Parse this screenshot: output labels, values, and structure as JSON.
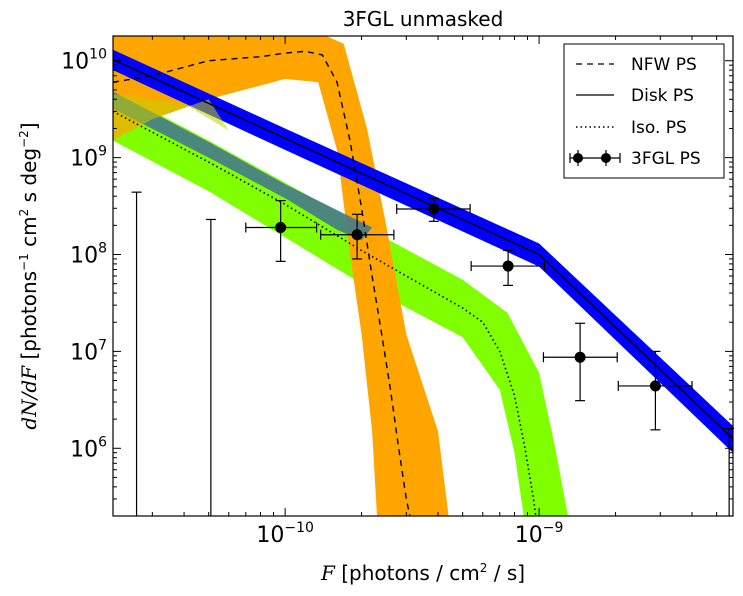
{
  "chart_data": {
    "type": "line",
    "title": "3FGL unmasked",
    "xlabel": "F  [photons / cm²  / s]",
    "ylabel": "dN/dF  [photons⁻¹ cm²  s deg⁻²]",
    "x_scale": "log",
    "y_scale": "log",
    "xlim": [
      2.1e-11,
      5.8e-09
    ],
    "ylim": [
      200000.0,
      18000000000.0
    ],
    "x_ticks": [
      {
        "value": 1e-10,
        "base": "10",
        "exp": "−10"
      },
      {
        "value": 1e-09,
        "base": "10",
        "exp": "−9"
      }
    ],
    "y_ticks": [
      {
        "value": 1000000.0,
        "base": "10",
        "exp": "6"
      },
      {
        "value": 10000000.0,
        "base": "10",
        "exp": "7"
      },
      {
        "value": 100000000.0,
        "base": "10",
        "exp": "8"
      },
      {
        "value": 1000000000.0,
        "base": "10",
        "exp": "9"
      },
      {
        "value": 10000000000.0,
        "base": "10",
        "exp": "10"
      }
    ],
    "legend": {
      "placement": "top-right",
      "entries": [
        {
          "label": "NFW PS",
          "style": "dashed"
        },
        {
          "label": "Disk PS",
          "style": "solid"
        },
        {
          "label": "Iso. PS",
          "style": "dotted"
        },
        {
          "label": "3FGL PS",
          "style": "errorbar"
        }
      ]
    },
    "colors": {
      "nfw_band": "#ffa500",
      "iso_band": "#80ff00",
      "disk_band": "#0000ff",
      "overlap_disk_iso": "#457a8a",
      "overlap_iso_nfw": "#c0d200",
      "line": "#000000"
    },
    "bands": [
      {
        "name": "Iso. PS",
        "color": "#80ff00",
        "lower": [
          [
            2.1e-11,
            1500000000.0
          ],
          [
            5e-11,
            450000000.0
          ],
          [
            1e-10,
            150000000.0
          ],
          [
            2e-10,
            50000000.0
          ],
          [
            5e-10,
            14000000.0
          ],
          [
            7e-10,
            4000000.0
          ],
          [
            8e-10,
            900000.0
          ],
          [
            8.5e-10,
            300000.0
          ],
          [
            8.7e-10,
            200000.0
          ]
        ],
        "upper": [
          [
            2.1e-11,
            5000000000.0
          ],
          [
            5e-11,
            1500000000.0
          ],
          [
            1e-10,
            550000000.0
          ],
          [
            2e-10,
            200000000.0
          ],
          [
            5e-10,
            55000000.0
          ],
          [
            7.5e-10,
            25000000.0
          ],
          [
            1e-09,
            6000000.0
          ],
          [
            1.15e-09,
            1100000.0
          ],
          [
            1.3e-09,
            200000.0
          ]
        ]
      },
      {
        "name": "NFW PS",
        "color": "#ffa500",
        "lower": [
          [
            2.1e-11,
            1500000000.0
          ],
          [
            3e-11,
            2500000000.0
          ],
          [
            5e-11,
            4000000000.0
          ],
          [
            1e-10,
            6500000000.0
          ],
          [
            1.35e-10,
            6000000000.0
          ],
          [
            1.6e-10,
            1200000000.0
          ],
          [
            1.8e-10,
            100000000.0
          ],
          [
            2e-10,
            15000000.0
          ],
          [
            2.2e-10,
            1500000.0
          ],
          [
            2.3e-10,
            200000.0
          ]
        ],
        "upper": [
          [
            2.1e-11,
            18000000000.0
          ],
          [
            5e-11,
            18000000000.0
          ],
          [
            1e-10,
            18000000000.0
          ],
          [
            1.45e-10,
            18000000000.0
          ],
          [
            1.7e-10,
            15000000000.0
          ],
          [
            2.1e-10,
            2000000000.0
          ],
          [
            2.5e-10,
            200000000.0
          ],
          [
            3e-10,
            15000000.0
          ],
          [
            4e-10,
            1500000.0
          ],
          [
            4.4e-10,
            200000.0
          ]
        ]
      },
      {
        "name": "Disk PS",
        "color": "#0000ff",
        "lower": [
          [
            2.1e-11,
            8000000000.0
          ],
          [
            1e-10,
            1200000000.0
          ],
          [
            1e-09,
            75000000.0
          ],
          [
            5.8e-09,
            900000.0
          ]
        ],
        "upper": [
          [
            2.1e-11,
            13000000000.0
          ],
          [
            1e-10,
            2000000000.0
          ],
          [
            1e-09,
            130000000.0
          ],
          [
            5.8e-09,
            1700000.0
          ]
        ]
      }
    ],
    "series": [
      {
        "name": "NFW PS",
        "style": "dashed",
        "points": [
          [
            2.1e-11,
            6000000000.0
          ],
          [
            3e-11,
            7000000000.0
          ],
          [
            5e-11,
            10000000000.0
          ],
          [
            8e-11,
            11000000000.0
          ],
          [
            1e-10,
            12000000000.0
          ],
          [
            1.2e-10,
            12500000000.0
          ],
          [
            1.4e-10,
            11500000000.0
          ],
          [
            1.6e-10,
            6000000000.0
          ],
          [
            1.8e-10,
            1500000000.0
          ],
          [
            2e-10,
            300000000.0
          ],
          [
            2.2e-10,
            60000000.0
          ],
          [
            2.4e-10,
            15000000.0
          ],
          [
            2.6e-10,
            4000000.0
          ],
          [
            2.8e-10,
            1000000.0
          ],
          [
            3e-10,
            300000.0
          ],
          [
            3.1e-10,
            200000.0
          ]
        ]
      },
      {
        "name": "Disk PS",
        "style": "solid",
        "points": [
          [
            2.1e-11,
            10300000000.0
          ],
          [
            1e-10,
            1580000000.0
          ],
          [
            1e-09,
            100000000.0
          ],
          [
            5.8e-09,
            1250000.0
          ]
        ]
      },
      {
        "name": "Iso. PS",
        "style": "dotted",
        "points": [
          [
            2.1e-11,
            3000000000.0
          ],
          [
            5e-11,
            900000000.0
          ],
          [
            1e-10,
            330000000.0
          ],
          [
            2e-10,
            110000000.0
          ],
          [
            3e-10,
            60000000.0
          ],
          [
            5e-10,
            28000000.0
          ],
          [
            6e-10,
            20000000.0
          ],
          [
            7e-10,
            10000000.0
          ],
          [
            8e-10,
            3500000.0
          ],
          [
            8.8e-10,
            1000000.0
          ],
          [
            9.5e-10,
            300000.0
          ],
          [
            9.7e-10,
            200000.0
          ]
        ]
      }
    ],
    "points_3fgl": [
      {
        "x": 9.6e-11,
        "y": 190000000.0,
        "xerr": [
          7e-11,
          1.33e-10
        ],
        "yerr": [
          85000000.0,
          360000000.0
        ]
      },
      {
        "x": 1.92e-10,
        "y": 160000000.0,
        "xerr": [
          1.38e-10,
          2.68e-10
        ],
        "yerr": [
          90000000.0,
          260000000.0
        ]
      },
      {
        "x": 3.85e-10,
        "y": 295000000.0,
        "xerr": [
          2.75e-10,
          5.35e-10
        ],
        "yerr": [
          220000000.0,
          380000000.0
        ]
      },
      {
        "x": 7.55e-10,
        "y": 76000000.0,
        "xerr": [
          5.4e-10,
          1.05e-09
        ],
        "yerr": [
          48000000.0,
          110000000.0
        ]
      },
      {
        "x": 1.45e-09,
        "y": 8700000.0,
        "xerr": [
          1.04e-09,
          2.03e-09
        ],
        "yerr": [
          3100000.0,
          19500000.0
        ]
      },
      {
        "x": 2.87e-09,
        "y": 4400000.0,
        "xerr": [
          2.05e-09,
          4e-09
        ],
        "yerr": [
          1550000.0,
          10000000.0
        ]
      }
    ],
    "upper_limits_3fgl": [
      {
        "x": 2.6e-11,
        "y_top": 440000000.0
      },
      {
        "x": 5.1e-11,
        "y_top": 230000000.0
      },
      {
        "x": 5.6e-09,
        "y_top": 1600000.0
      }
    ]
  }
}
